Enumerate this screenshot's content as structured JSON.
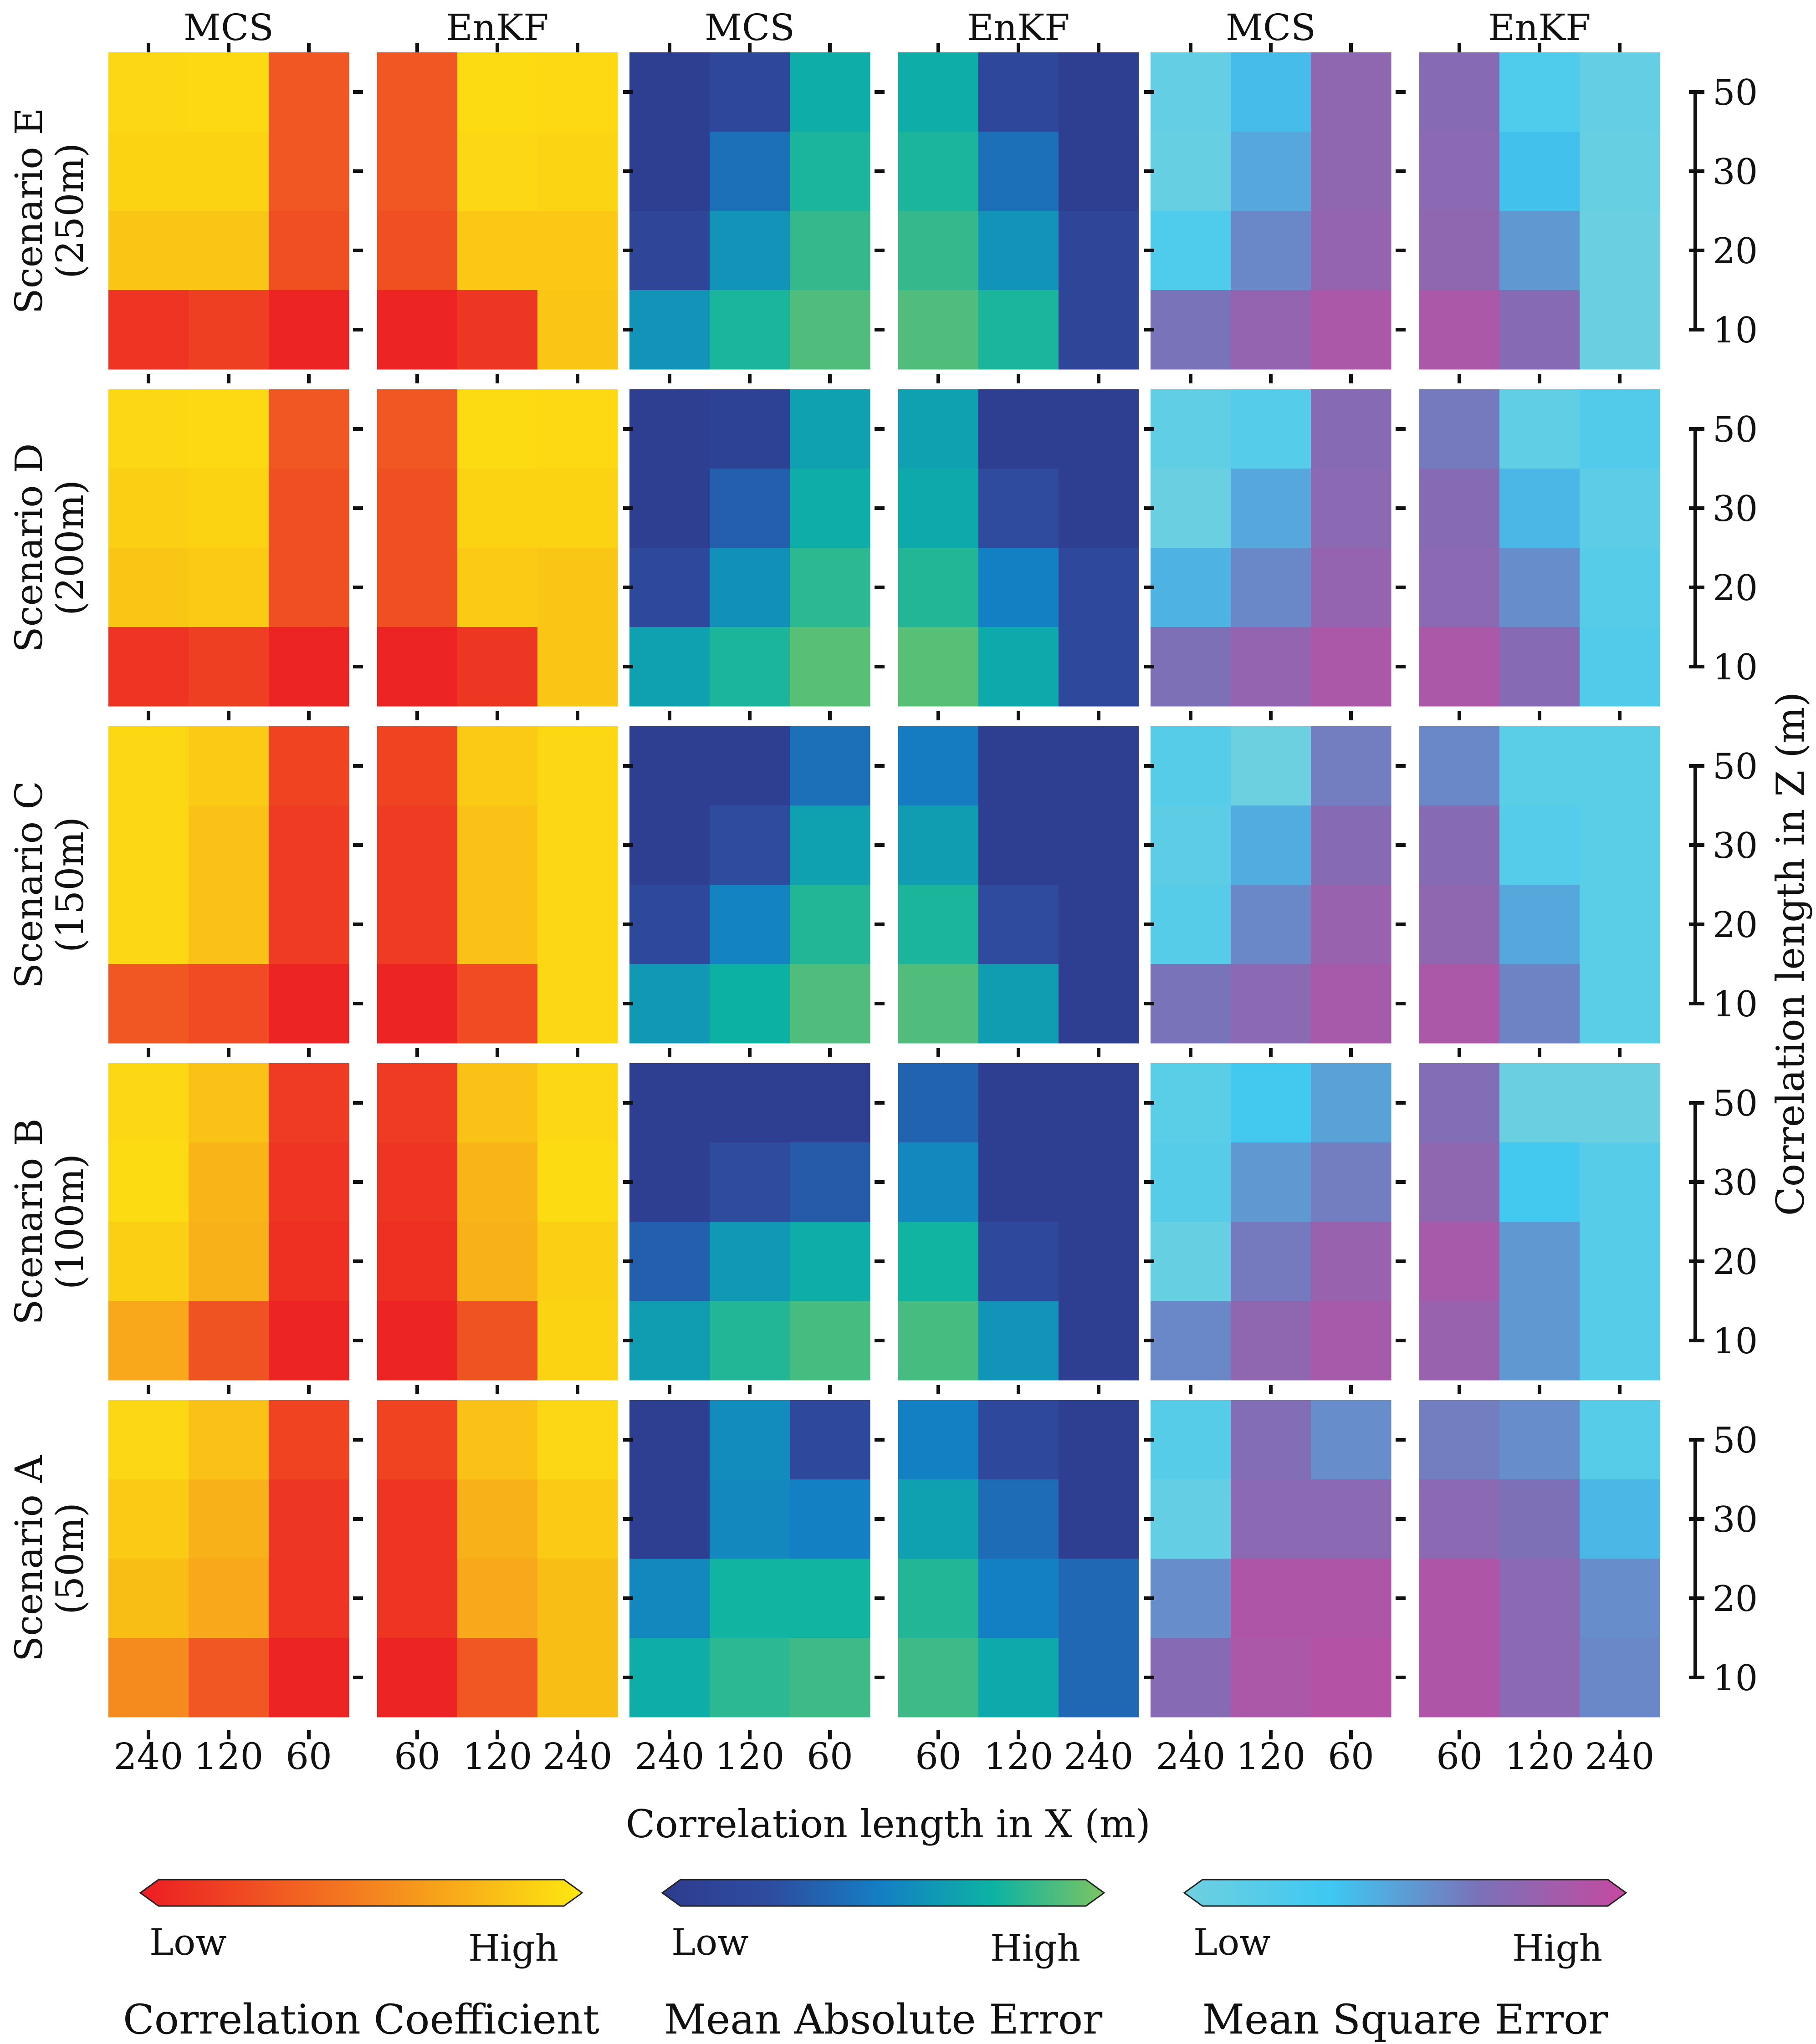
{
  "chart_data": {
    "type": "heatmap",
    "title": "",
    "xlabel": "Correlation length in X (m)",
    "ylabel": "Correlation length in Z (m)",
    "column_methods": [
      "MCS",
      "EnKF",
      "MCS",
      "EnKF",
      "MCS",
      "EnKF"
    ],
    "column_metrics": [
      "Correlation Coefficient",
      "Correlation Coefficient",
      "Mean Absolute Error",
      "Mean Absolute Error",
      "Mean Square Error",
      "Mean Square Error"
    ],
    "x_ticks": [
      [
        "240",
        "120",
        "60"
      ],
      [
        "60",
        "120",
        "240"
      ],
      [
        "240",
        "120",
        "60"
      ],
      [
        "60",
        "120",
        "240"
      ],
      [
        "240",
        "120",
        "60"
      ],
      [
        "60",
        "120",
        "240"
      ]
    ],
    "z_ticks": [
      "50",
      "30",
      "20",
      "10"
    ],
    "scenarios": [
      {
        "name": "Scenario E",
        "depth": "(250m)",
        "panels": [
          [
            [
              0.92,
              0.93,
              0.3
            ],
            [
              0.9,
              0.9,
              0.3
            ],
            [
              0.84,
              0.84,
              0.26
            ],
            [
              0.12,
              0.18,
              0.04
            ]
          ],
          [
            [
              0.3,
              0.94,
              0.93
            ],
            [
              0.3,
              0.92,
              0.91
            ],
            [
              0.26,
              0.85,
              0.85
            ],
            [
              0.04,
              0.14,
              0.84
            ]
          ],
          [
            [
              0.05,
              0.17,
              0.72
            ],
            [
              0.04,
              0.42,
              0.78
            ],
            [
              0.14,
              0.6,
              0.84
            ],
            [
              0.6,
              0.78,
              0.9
            ]
          ],
          [
            [
              0.72,
              0.17,
              0.05
            ],
            [
              0.78,
              0.42,
              0.04
            ],
            [
              0.84,
              0.6,
              0.14
            ],
            [
              0.9,
              0.78,
              0.14
            ]
          ],
          [
            [
              0.08,
              0.38,
              0.76
            ],
            [
              0.06,
              0.46,
              0.76
            ],
            [
              0.22,
              0.58,
              0.78
            ],
            [
              0.66,
              0.78,
              0.88
            ]
          ],
          [
            [
              0.72,
              0.22,
              0.08
            ],
            [
              0.74,
              0.36,
              0.06
            ],
            [
              0.76,
              0.52,
              0.04
            ],
            [
              0.88,
              0.72,
              0.04
            ]
          ]
        ]
      },
      {
        "name": "Scenario D",
        "depth": "(200m)",
        "panels": [
          [
            [
              0.92,
              0.93,
              0.3
            ],
            [
              0.88,
              0.9,
              0.26
            ],
            [
              0.84,
              0.86,
              0.26
            ],
            [
              0.12,
              0.18,
              0.04
            ]
          ],
          [
            [
              0.3,
              0.94,
              0.93
            ],
            [
              0.26,
              0.9,
              0.9
            ],
            [
              0.26,
              0.86,
              0.84
            ],
            [
              0.04,
              0.14,
              0.84
            ]
          ],
          [
            [
              0.04,
              0.1,
              0.66
            ],
            [
              0.04,
              0.34,
              0.72
            ],
            [
              0.18,
              0.58,
              0.82
            ],
            [
              0.66,
              0.78,
              0.92
            ]
          ],
          [
            [
              0.66,
              0.06,
              0.04
            ],
            [
              0.7,
              0.22,
              0.04
            ],
            [
              0.8,
              0.5,
              0.18
            ],
            [
              0.92,
              0.7,
              0.18
            ]
          ],
          [
            [
              0.1,
              0.18,
              0.72
            ],
            [
              0.04,
              0.46,
              0.74
            ],
            [
              0.42,
              0.58,
              0.78
            ],
            [
              0.68,
              0.78,
              0.88
            ]
          ],
          [
            [
              0.64,
              0.1,
              0.2
            ],
            [
              0.72,
              0.4,
              0.12
            ],
            [
              0.74,
              0.56,
              0.16
            ],
            [
              0.88,
              0.72,
              0.2
            ]
          ]
        ]
      },
      {
        "name": "Scenario C",
        "depth": "(150m)",
        "panels": [
          [
            [
              0.92,
              0.86,
              0.2
            ],
            [
              0.92,
              0.82,
              0.16
            ],
            [
              0.92,
              0.82,
              0.16
            ],
            [
              0.3,
              0.24,
              0.04
            ]
          ],
          [
            [
              0.2,
              0.86,
              0.92
            ],
            [
              0.16,
              0.82,
              0.92
            ],
            [
              0.16,
              0.82,
              0.92
            ],
            [
              0.04,
              0.24,
              0.92
            ]
          ],
          [
            [
              0.04,
              0.05,
              0.42
            ],
            [
              0.04,
              0.22,
              0.66
            ],
            [
              0.18,
              0.52,
              0.8
            ],
            [
              0.62,
              0.74,
              0.9
            ]
          ],
          [
            [
              0.48,
              0.04,
              0.04
            ],
            [
              0.64,
              0.04,
              0.04
            ],
            [
              0.78,
              0.22,
              0.04
            ],
            [
              0.9,
              0.64,
              0.04
            ]
          ],
          [
            [
              0.16,
              0.02,
              0.62
            ],
            [
              0.12,
              0.44,
              0.72
            ],
            [
              0.16,
              0.58,
              0.8
            ],
            [
              0.66,
              0.74,
              0.86
            ]
          ],
          [
            [
              0.58,
              0.14,
              0.14
            ],
            [
              0.72,
              0.18,
              0.14
            ],
            [
              0.76,
              0.46,
              0.14
            ],
            [
              0.88,
              0.6,
              0.14
            ]
          ]
        ]
      },
      {
        "name": "Scenario B",
        "depth": "(100m)",
        "panels": [
          [
            [
              0.92,
              0.82,
              0.16
            ],
            [
              0.94,
              0.76,
              0.12
            ],
            [
              0.88,
              0.74,
              0.1
            ],
            [
              0.7,
              0.28,
              0.04
            ]
          ],
          [
            [
              0.16,
              0.82,
              0.92
            ],
            [
              0.12,
              0.76,
              0.94
            ],
            [
              0.1,
              0.74,
              0.88
            ],
            [
              0.04,
              0.28,
              0.9
            ]
          ],
          [
            [
              0.04,
              0.04,
              0.04
            ],
            [
              0.04,
              0.22,
              0.32
            ],
            [
              0.34,
              0.62,
              0.72
            ],
            [
              0.64,
              0.8,
              0.88
            ]
          ],
          [
            [
              0.36,
              0.04,
              0.04
            ],
            [
              0.54,
              0.04,
              0.04
            ],
            [
              0.76,
              0.2,
              0.04
            ],
            [
              0.88,
              0.6,
              0.04
            ]
          ],
          [
            [
              0.14,
              0.3,
              0.48
            ],
            [
              0.16,
              0.52,
              0.62
            ],
            [
              0.06,
              0.64,
              0.8
            ],
            [
              0.58,
              0.76,
              0.86
            ]
          ],
          [
            [
              0.7,
              0.04,
              0.04
            ],
            [
              0.76,
              0.3,
              0.16
            ],
            [
              0.86,
              0.52,
              0.16
            ],
            [
              0.8,
              0.52,
              0.16
            ]
          ]
        ]
      },
      {
        "name": "Scenario A",
        "depth": "(50m)",
        "panels": [
          [
            [
              0.92,
              0.82,
              0.2
            ],
            [
              0.86,
              0.74,
              0.14
            ],
            [
              0.8,
              0.7,
              0.12
            ],
            [
              0.56,
              0.3,
              0.04
            ]
          ],
          [
            [
              0.2,
              0.82,
              0.92
            ],
            [
              0.12,
              0.74,
              0.86
            ],
            [
              0.12,
              0.7,
              0.8
            ],
            [
              0.04,
              0.3,
              0.8
            ]
          ],
          [
            [
              0.04,
              0.56,
              0.2
            ],
            [
              0.04,
              0.54,
              0.5
            ],
            [
              0.54,
              0.76,
              0.76
            ],
            [
              0.72,
              0.82,
              0.86
            ]
          ],
          [
            [
              0.5,
              0.2,
              0.04
            ],
            [
              0.66,
              0.4,
              0.04
            ],
            [
              0.8,
              0.5,
              0.38
            ],
            [
              0.86,
              0.7,
              0.38
            ]
          ],
          [
            [
              0.16,
              0.7,
              0.56
            ],
            [
              0.08,
              0.74,
              0.74
            ],
            [
              0.56,
              0.9,
              0.9
            ],
            [
              0.72,
              0.88,
              0.92
            ]
          ],
          [
            [
              0.62,
              0.56,
              0.16
            ],
            [
              0.74,
              0.68,
              0.4
            ],
            [
              0.9,
              0.74,
              0.56
            ],
            [
              0.9,
              0.74,
              0.58
            ]
          ]
        ]
      }
    ],
    "legends": [
      {
        "title": "Correlation Coefficient",
        "low": "Low",
        "high": "High",
        "colors": [
          "#ec1c24",
          "#f47e20",
          "#fde810"
        ]
      },
      {
        "title": "Mean Absolute Error",
        "low": "Low",
        "high": "High",
        "colors": [
          "#2e3b8e",
          "#2e4da0",
          "#1380c4",
          "#0db3a3",
          "#7cc462"
        ]
      },
      {
        "title": "Mean Square Error",
        "low": "Low",
        "high": "High",
        "colors": [
          "#6fd0df",
          "#3ec8f2",
          "#7a72b8",
          "#c649a0"
        ]
      }
    ]
  }
}
